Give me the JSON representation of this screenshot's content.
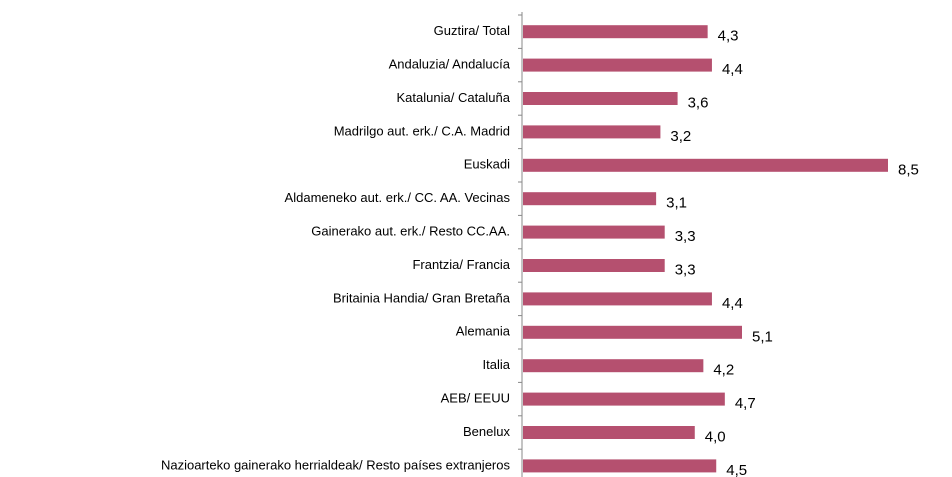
{
  "chart_data": {
    "type": "bar",
    "orientation": "horizontal",
    "color": "#b5506f",
    "categories": [
      "Guztira/ Total",
      "Andaluzia/ Andalucía",
      "Katalunia/ Cataluña",
      "Madrilgo aut. erk./ C.A. Madrid",
      "Euskadi",
      "Aldameneko aut. erk./ CC. AA. Vecinas",
      "Gainerako aut. erk./ Resto CC.AA.",
      "Frantzia/ Francia",
      "Britainia Handia/ Gran Bretaña",
      "Alemania",
      "Italia",
      "AEB/ EEUU",
      "Benelux",
      "Nazioarteko gainerako herrialdeak/ Resto países extranjeros"
    ],
    "values": [
      4.3,
      4.4,
      3.6,
      3.2,
      8.5,
      3.1,
      3.3,
      3.3,
      4.4,
      5.1,
      4.2,
      4.7,
      4.0,
      4.5
    ],
    "value_labels": [
      "4,3",
      "4,4",
      "3,6",
      "3,2",
      "8,5",
      "3,1",
      "3,3",
      "3,3",
      "4,4",
      "5,1",
      "4,2",
      "4,7",
      "4,0",
      "4,5"
    ]
  }
}
